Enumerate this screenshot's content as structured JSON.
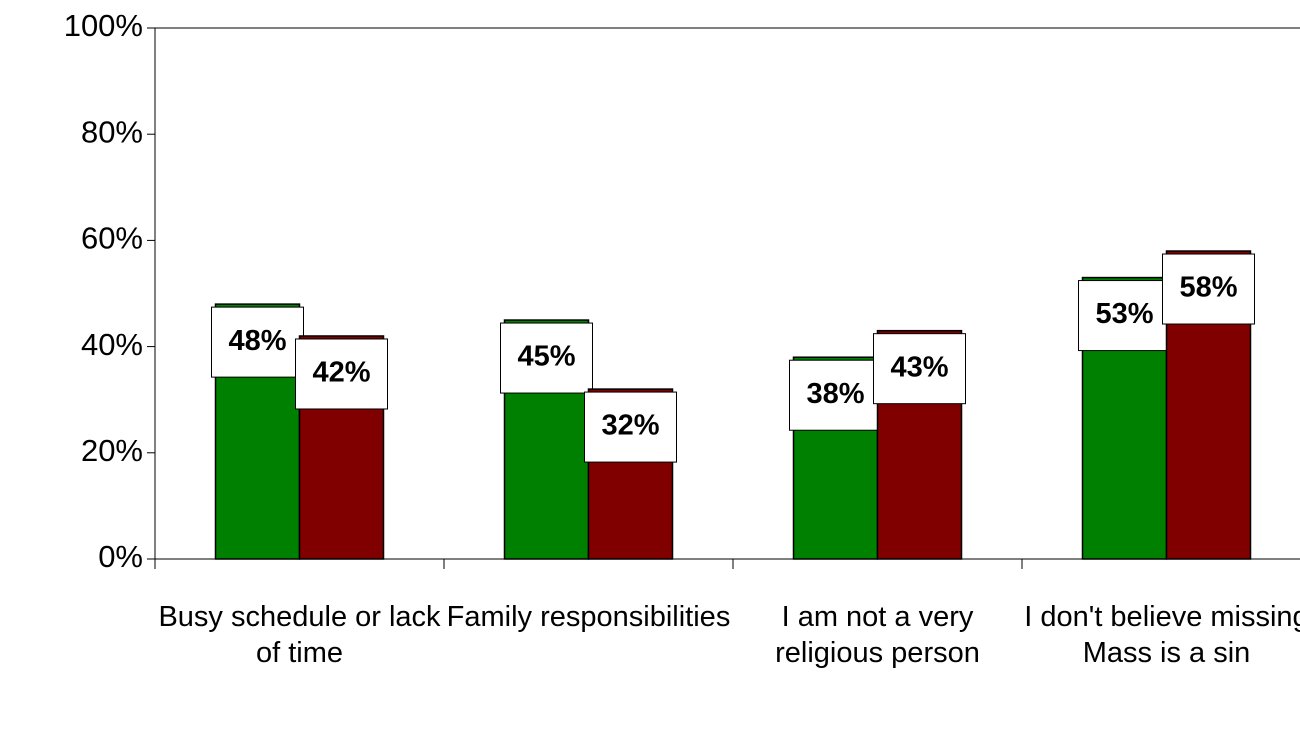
{
  "chart_data": {
    "type": "bar",
    "categories": [
      "Busy schedule or lack of time",
      "Family responsibilities",
      "I am not a very religious person",
      "I don't believe missing Mass is a sin"
    ],
    "series": [
      {
        "color": "#008000",
        "values": [
          48,
          45,
          38,
          53
        ],
        "value_labels": [
          "48%",
          "45%",
          "38%",
          "53%"
        ]
      },
      {
        "color": "#800000",
        "values": [
          42,
          32,
          43,
          58
        ],
        "value_labels": [
          "42%",
          "32%",
          "43%",
          "58%"
        ]
      }
    ],
    "ylim": [
      0,
      100
    ],
    "yticks": [
      {
        "value": 0,
        "label": "0%"
      },
      {
        "value": 20,
        "label": "20%"
      },
      {
        "value": 40,
        "label": "40%"
      },
      {
        "value": 60,
        "label": "60%"
      },
      {
        "value": 80,
        "label": "80%"
      },
      {
        "value": 100,
        "label": "100%"
      }
    ],
    "grid": false
  }
}
